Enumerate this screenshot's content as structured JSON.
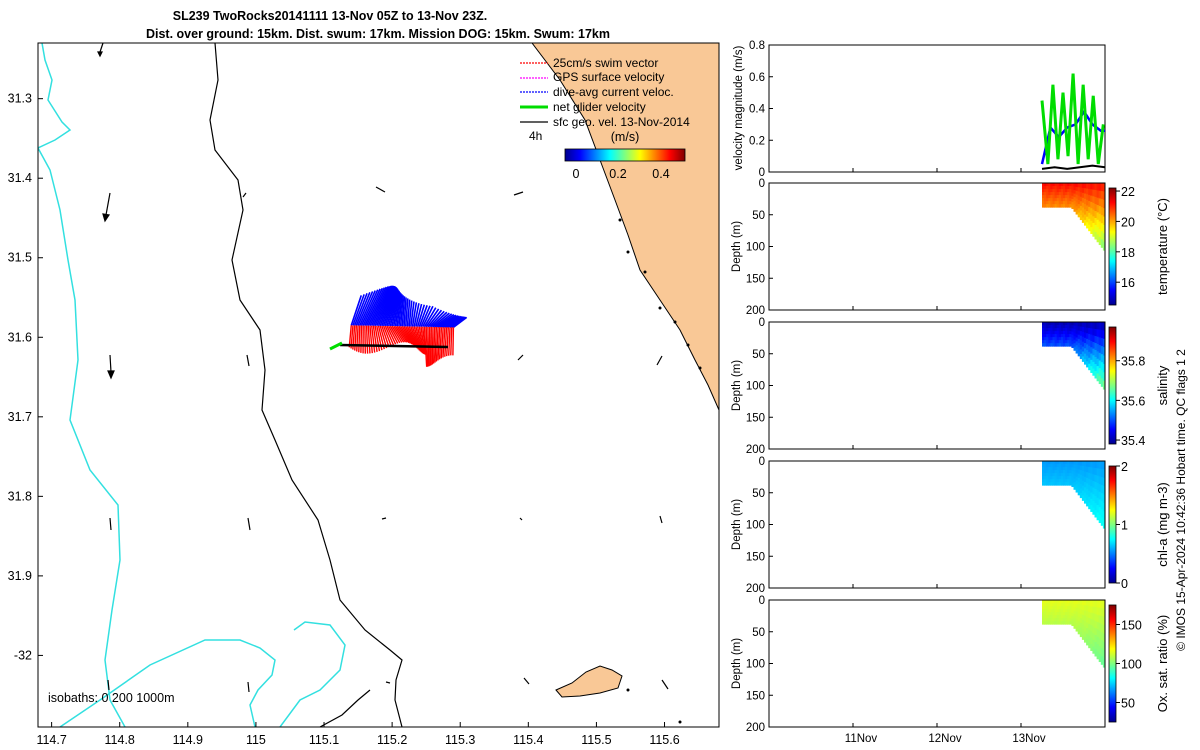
{
  "title_line1": "SL239 TwoRocks20141111 13-Nov 05Z to 13-Nov 23Z.",
  "title_line2": "Dist. over ground: 15km. Dist. swum: 17km. Mission DOG: 15km. Swum: 17km",
  "footer_text": "© IMOS 15-Apr-2024 10:42:36 Hobart time. QC flags 1  2",
  "isobath_label": "isobaths: 0   200  1000m",
  "legend": {
    "items": [
      "25cm/s swim vector",
      "GPS surface velocity",
      "dive-avg current veloc.",
      "net glider velocity",
      "sfc geo. vel. 13-Nov-2014"
    ],
    "time_label": "4h",
    "units": "(m/s)",
    "colorbar_ticks": [
      "0",
      "0.2",
      "0.4"
    ]
  },
  "colors": {
    "swim": "#ff0000",
    "gps": "#ff00ff",
    "dive_avg": "#0000ff",
    "net": "#00cc00",
    "sfc_geo": "#000000",
    "land": "#f9c896",
    "isobath_200": "#33e0e0"
  },
  "chart_data": [
    {
      "type": "scatter",
      "name": "map",
      "xlim": [
        114.68,
        115.68
      ],
      "ylim": [
        -32.09,
        -31.23
      ],
      "xticks": [
        "114.7",
        "114.8",
        "114.9",
        "115",
        "115.1",
        "115.2",
        "115.3",
        "115.4",
        "115.5",
        "115.6"
      ],
      "yticks": [
        "31.3",
        "31.4",
        "31.5",
        "31.6",
        "31.7",
        "31.8",
        "31.9",
        "-32"
      ],
      "track": {
        "lon_start": 115.14,
        "lon_end": 115.29,
        "lat": -31.585
      },
      "net_vector": {
        "lon": 115.14,
        "lat": -31.585,
        "u": -0.1,
        "v": -0.03
      }
    },
    {
      "type": "line",
      "name": "velocity",
      "ylabel": "velocity magnitude (m/s)",
      "ylim": [
        0,
        0.8
      ],
      "yticks": [
        "0",
        "0.2",
        "0.4",
        "0.6",
        "0.8"
      ],
      "xlim_days": [
        10.0,
        14.0
      ],
      "series": [
        {
          "x": [
            13.25,
            13.35,
            13.45,
            13.55,
            13.65,
            13.75,
            13.85,
            13.95,
            14.0
          ],
          "values": [
            0.05,
            0.28,
            0.22,
            0.28,
            0.3,
            0.38,
            0.3,
            0.26,
            0.26
          ]
        },
        {
          "x": [
            13.25,
            13.32,
            13.38,
            13.44,
            13.5,
            13.56,
            13.62,
            13.68,
            13.74,
            13.8,
            13.86,
            13.92,
            13.98
          ],
          "values": [
            0.45,
            0.05,
            0.55,
            0.08,
            0.5,
            0.1,
            0.62,
            0.05,
            0.55,
            0.08,
            0.48,
            0.05,
            0.3
          ]
        },
        {
          "x": [
            13.25,
            13.4,
            13.55,
            13.7,
            13.85,
            14.0
          ],
          "values": [
            0.02,
            0.03,
            0.02,
            0.03,
            0.04,
            0.03
          ]
        }
      ]
    },
    {
      "type": "heatmap",
      "name": "temperature",
      "ylabel": "Depth (m)",
      "clabel": "temperature (°C)",
      "yticks": [
        "0",
        "50",
        "100",
        "150",
        "200"
      ],
      "cticks": [
        "22",
        "20",
        "18",
        "16"
      ],
      "clim": [
        14.5,
        22.2
      ]
    },
    {
      "type": "heatmap",
      "name": "salinity",
      "ylabel": "Depth (m)",
      "clabel": "salinity",
      "yticks": [
        "0",
        "50",
        "100",
        "150",
        "200"
      ],
      "cticks": [
        "35.8",
        "35.6",
        "35.4"
      ],
      "clim": [
        35.38,
        35.97
      ]
    },
    {
      "type": "heatmap",
      "name": "chl-a",
      "ylabel": "Depth (m)",
      "clabel": "chl-a (mg m-3)",
      "yticks": [
        "0",
        "50",
        "100",
        "150",
        "200"
      ],
      "cticks": [
        "2",
        "1",
        "0"
      ],
      "clim": [
        0,
        2
      ]
    },
    {
      "type": "heatmap",
      "name": "oxygen",
      "ylabel": "Depth (m)",
      "clabel": "Ox. sat. ratio (%)",
      "yticks": [
        "0",
        "50",
        "100",
        "150",
        "200"
      ],
      "cticks": [
        "150",
        "100",
        "50"
      ],
      "clim": [
        25,
        175
      ],
      "xticks": [
        "11Nov",
        "12Nov",
        "13Nov"
      ]
    }
  ]
}
